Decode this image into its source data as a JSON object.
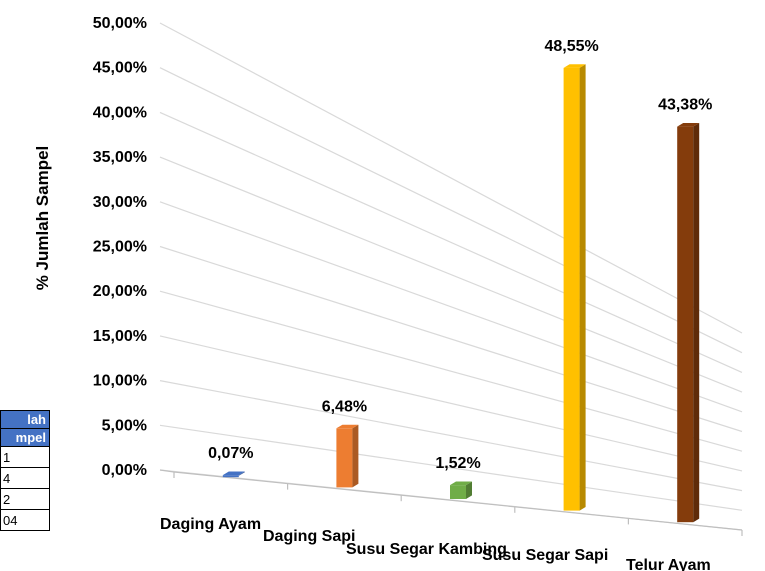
{
  "chart_data": {
    "type": "bar",
    "title": "",
    "xlabel": "",
    "ylabel": "% Jumlah Sampel",
    "categories": [
      "Daging  Ayam",
      "Daging Sapi",
      "Susu Segar Kambing",
      "Susu Segar Sapi",
      "Telur Ayam"
    ],
    "values": [
      0.07,
      6.48,
      1.52,
      48.55,
      43.38
    ],
    "data_labels": [
      "0,07%",
      "6,48%",
      "1,52%",
      "48,55%",
      "43,38%"
    ],
    "colors": [
      "#4472c4",
      "#ed7d31",
      "#70ad47",
      "#ffc000",
      "#843c0c"
    ],
    "ylim": [
      0,
      50
    ],
    "y_ticks": [
      "0,00%",
      "5,00%",
      "10,00%",
      "15,00%",
      "20,00%",
      "25,00%",
      "30,00%",
      "35,00%",
      "40,00%",
      "45,00%",
      "50,00%"
    ],
    "grid": true,
    "legend": "none",
    "perspective": "3d"
  },
  "side_table": {
    "header": [
      "lah",
      "mpel"
    ],
    "rows": [
      "1",
      "4",
      "2",
      "04"
    ]
  }
}
